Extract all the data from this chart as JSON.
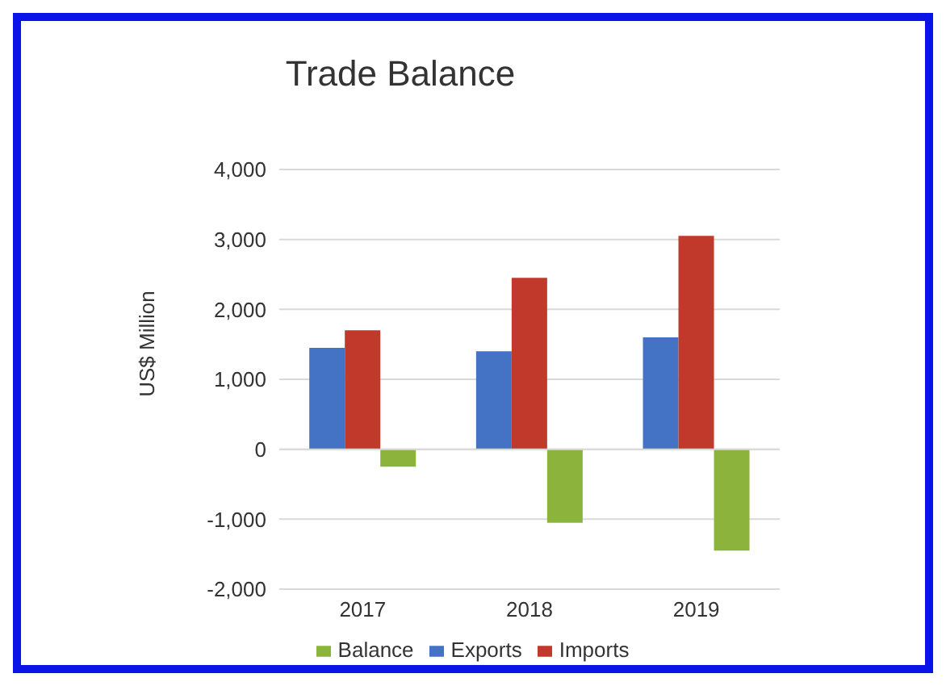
{
  "chart_data": {
    "type": "bar",
    "title": "Trade Balance",
    "ylabel": "US$ Million",
    "categories": [
      "2017",
      "2018",
      "2019"
    ],
    "series": [
      {
        "name": "Exports",
        "color": "#4472c4",
        "values": [
          1450,
          1400,
          1600
        ]
      },
      {
        "name": "Imports",
        "color": "#c0392b",
        "values": [
          1700,
          2450,
          3050
        ]
      },
      {
        "name": "Balance",
        "color": "#8cb43c",
        "values": [
          -250,
          -1050,
          -1450
        ]
      }
    ],
    "ylim": [
      -2000,
      4000
    ],
    "yticks": [
      {
        "value": -2000,
        "label": "-2,000"
      },
      {
        "value": -1000,
        "label": "-1,000"
      },
      0,
      {
        "value": 1000,
        "label": "1,000"
      },
      {
        "value": 2000,
        "label": "2,000"
      },
      {
        "value": 3000,
        "label": "3,000"
      },
      {
        "value": 4000,
        "label": "4,000"
      }
    ],
    "grid": "y",
    "legend": "bottom"
  }
}
